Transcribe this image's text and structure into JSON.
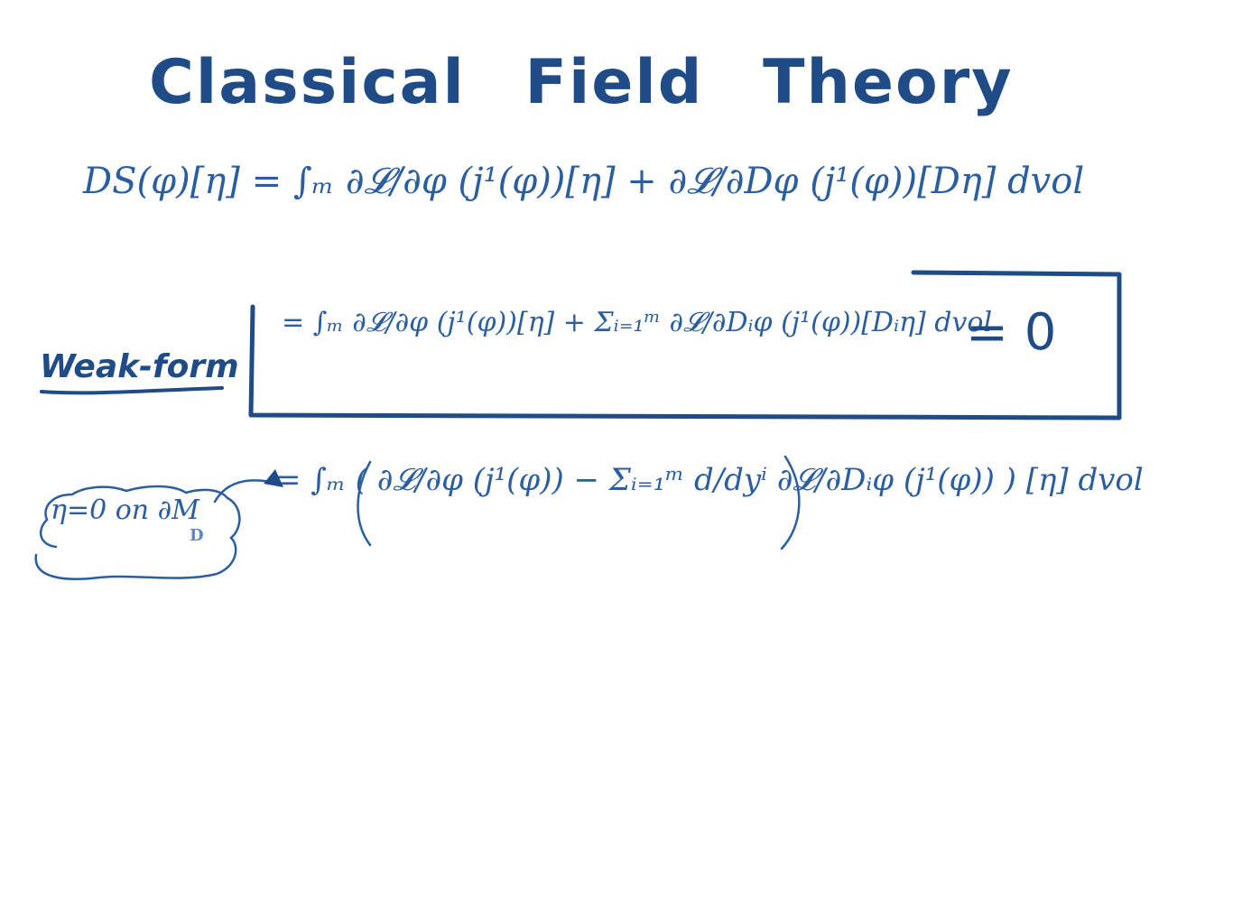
{
  "title": "Classical Field Theory",
  "equations": {
    "first_variation": "DS(φ)[η] = ∫ₘ ∂𝓛/∂φ (j¹(φ))[η] + ∂𝓛/∂Dφ (j¹(φ))[Dη]  dvol",
    "weak_form": "= ∫ₘ ∂𝓛/∂φ (j¹(φ))[η] + Σᵢ₌₁ᵐ ∂𝓛/∂Dᵢφ (j¹(φ))[Dᵢη]  dvol",
    "weak_form_rhs": "= 0",
    "integrated_by_parts": "= ∫ₘ ( ∂𝓛/∂φ (j¹(φ)) − Σᵢ₌₁ᵐ d/dyⁱ ∂𝓛/∂Dᵢφ (j¹(φ)) ) [η]  dvol"
  },
  "labels": {
    "weak_form": "Weak-form",
    "boundary_condition": "η=0 on ∂M",
    "boundary_subscript": "D"
  },
  "colors": {
    "ink": "#234e8c",
    "ink_light": "#5b86c7",
    "background": "#ffffff"
  }
}
